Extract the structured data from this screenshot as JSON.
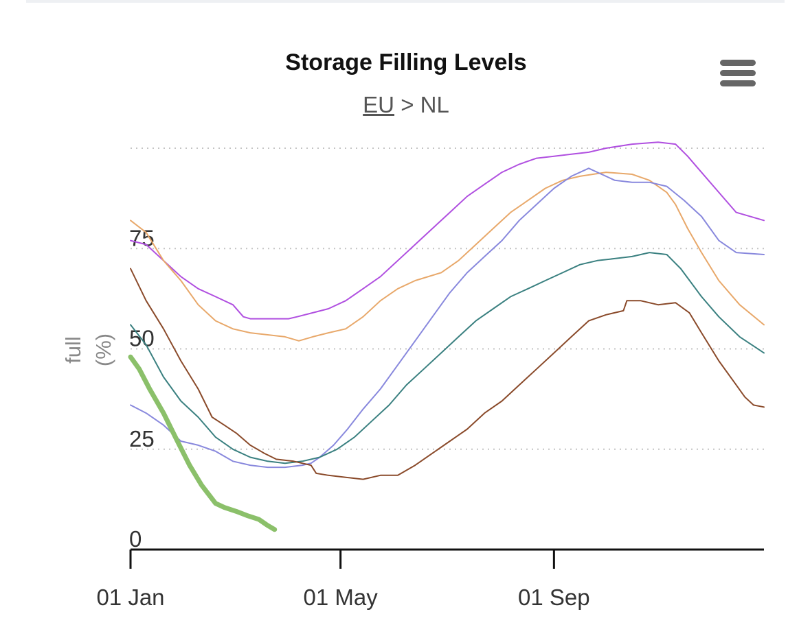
{
  "chart_data": {
    "type": "line",
    "title": "Storage Filling Levels",
    "subtitle": {
      "link": "EU",
      "separator": ">",
      "current": "NL"
    },
    "ylabel": "full (%)",
    "ylabel_lines": [
      "full",
      "(%)"
    ],
    "xlabel": "",
    "ylim": [
      0,
      100
    ],
    "y_ticks": [
      0,
      25,
      50,
      75
    ],
    "grid": true,
    "x_unit": "day_of_year",
    "xlim": [
      1,
      366
    ],
    "x_ticks": [
      {
        "day": 1,
        "label": "01 Jan"
      },
      {
        "day": 122,
        "label": "01 May"
      },
      {
        "day": 245,
        "label": "01 Sep"
      }
    ],
    "series": [
      {
        "name": "purple",
        "color": "#b04fe0",
        "width": 2,
        "points": [
          [
            1,
            77
          ],
          [
            10,
            76
          ],
          [
            20,
            72
          ],
          [
            30,
            68
          ],
          [
            40,
            65
          ],
          [
            50,
            63
          ],
          [
            60,
            61
          ],
          [
            66,
            58
          ],
          [
            70,
            57.5
          ],
          [
            80,
            57.5
          ],
          [
            92,
            57.5
          ],
          [
            97,
            58
          ],
          [
            106,
            59
          ],
          [
            115,
            60
          ],
          [
            125,
            62
          ],
          [
            135,
            65
          ],
          [
            145,
            68
          ],
          [
            155,
            72
          ],
          [
            165,
            76
          ],
          [
            175,
            80
          ],
          [
            185,
            84
          ],
          [
            195,
            88
          ],
          [
            205,
            91
          ],
          [
            215,
            94
          ],
          [
            225,
            96
          ],
          [
            235,
            97.5
          ],
          [
            245,
            98
          ],
          [
            255,
            98.5
          ],
          [
            265,
            99
          ],
          [
            275,
            100
          ],
          [
            290,
            101
          ],
          [
            305,
            101.5
          ],
          [
            315,
            101
          ],
          [
            322,
            98
          ],
          [
            328,
            95
          ],
          [
            340,
            89
          ],
          [
            350,
            84
          ],
          [
            366,
            82
          ]
        ]
      },
      {
        "name": "orange",
        "color": "#e8a86a",
        "width": 2,
        "points": [
          [
            1,
            82
          ],
          [
            10,
            79
          ],
          [
            20,
            72
          ],
          [
            30,
            67
          ],
          [
            40,
            61
          ],
          [
            50,
            57
          ],
          [
            60,
            55
          ],
          [
            70,
            54
          ],
          [
            80,
            53.5
          ],
          [
            90,
            53
          ],
          [
            98,
            52
          ],
          [
            106,
            53
          ],
          [
            115,
            54
          ],
          [
            125,
            55
          ],
          [
            135,
            58
          ],
          [
            145,
            62
          ],
          [
            155,
            65
          ],
          [
            165,
            67
          ],
          [
            180,
            69
          ],
          [
            190,
            72
          ],
          [
            200,
            76
          ],
          [
            210,
            80
          ],
          [
            220,
            84
          ],
          [
            230,
            87
          ],
          [
            240,
            90
          ],
          [
            250,
            92
          ],
          [
            260,
            93
          ],
          [
            275,
            94
          ],
          [
            290,
            93.5
          ],
          [
            300,
            92
          ],
          [
            310,
            89
          ],
          [
            315,
            86
          ],
          [
            322,
            80
          ],
          [
            330,
            74
          ],
          [
            340,
            67
          ],
          [
            352,
            61
          ],
          [
            366,
            56
          ]
        ]
      },
      {
        "name": "lavender",
        "color": "#8888dd",
        "width": 2,
        "points": [
          [
            1,
            36
          ],
          [
            10,
            34
          ],
          [
            20,
            31
          ],
          [
            30,
            27
          ],
          [
            40,
            26
          ],
          [
            50,
            24.5
          ],
          [
            60,
            22
          ],
          [
            70,
            21
          ],
          [
            80,
            20.5
          ],
          [
            90,
            20.5
          ],
          [
            100,
            21
          ],
          [
            105,
            21.5
          ],
          [
            110,
            23
          ],
          [
            118,
            26
          ],
          [
            126,
            30
          ],
          [
            135,
            35
          ],
          [
            145,
            40
          ],
          [
            155,
            46
          ],
          [
            165,
            52
          ],
          [
            175,
            58
          ],
          [
            185,
            64
          ],
          [
            195,
            69
          ],
          [
            205,
            73
          ],
          [
            215,
            77
          ],
          [
            225,
            82
          ],
          [
            235,
            86
          ],
          [
            245,
            90
          ],
          [
            255,
            93
          ],
          [
            265,
            95
          ],
          [
            270,
            94
          ],
          [
            280,
            92
          ],
          [
            290,
            91.5
          ],
          [
            300,
            91.5
          ],
          [
            310,
            90.5
          ],
          [
            320,
            87
          ],
          [
            330,
            83
          ],
          [
            340,
            77
          ],
          [
            350,
            74
          ],
          [
            366,
            73.5
          ]
        ]
      },
      {
        "name": "teal",
        "color": "#3a8080",
        "width": 2,
        "points": [
          [
            1,
            56
          ],
          [
            10,
            51
          ],
          [
            20,
            43
          ],
          [
            30,
            37
          ],
          [
            40,
            33
          ],
          [
            50,
            28
          ],
          [
            60,
            25
          ],
          [
            70,
            23
          ],
          [
            80,
            22
          ],
          [
            90,
            21.5
          ],
          [
            100,
            22
          ],
          [
            110,
            23
          ],
          [
            120,
            25
          ],
          [
            130,
            28
          ],
          [
            140,
            32
          ],
          [
            150,
            36
          ],
          [
            160,
            41
          ],
          [
            170,
            45
          ],
          [
            180,
            49
          ],
          [
            190,
            53
          ],
          [
            200,
            57
          ],
          [
            210,
            60
          ],
          [
            220,
            63
          ],
          [
            230,
            65
          ],
          [
            240,
            67
          ],
          [
            250,
            69
          ],
          [
            260,
            71
          ],
          [
            270,
            72
          ],
          [
            280,
            72.5
          ],
          [
            290,
            73
          ],
          [
            300,
            74
          ],
          [
            310,
            73.5
          ],
          [
            318,
            70
          ],
          [
            330,
            63
          ],
          [
            340,
            58
          ],
          [
            352,
            53
          ],
          [
            366,
            49
          ]
        ]
      },
      {
        "name": "brown",
        "color": "#8a4a2a",
        "width": 2,
        "points": [
          [
            1,
            70
          ],
          [
            10,
            62
          ],
          [
            20,
            55
          ],
          [
            30,
            47
          ],
          [
            40,
            40
          ],
          [
            48,
            33
          ],
          [
            55,
            31
          ],
          [
            62,
            29
          ],
          [
            70,
            26
          ],
          [
            78,
            24
          ],
          [
            85,
            22.5
          ],
          [
            95,
            22
          ],
          [
            105,
            21
          ],
          [
            108,
            19
          ],
          [
            115,
            18.5
          ],
          [
            125,
            18
          ],
          [
            135,
            17.5
          ],
          [
            145,
            18.5
          ],
          [
            155,
            18.5
          ],
          [
            165,
            21
          ],
          [
            175,
            24
          ],
          [
            185,
            27
          ],
          [
            195,
            30
          ],
          [
            205,
            34
          ],
          [
            215,
            37
          ],
          [
            225,
            41
          ],
          [
            235,
            45
          ],
          [
            245,
            49
          ],
          [
            255,
            53
          ],
          [
            265,
            57
          ],
          [
            275,
            58.5
          ],
          [
            285,
            59.5
          ],
          [
            287,
            62
          ],
          [
            295,
            62
          ],
          [
            305,
            61
          ],
          [
            315,
            61.5
          ],
          [
            323,
            59
          ],
          [
            330,
            54
          ],
          [
            340,
            47
          ],
          [
            350,
            41
          ],
          [
            355,
            38
          ],
          [
            360,
            36
          ],
          [
            366,
            35.5
          ]
        ]
      },
      {
        "name": "current",
        "color": "#8bc06a",
        "width": 7,
        "points": [
          [
            1,
            48
          ],
          [
            6,
            45
          ],
          [
            12,
            40
          ],
          [
            20,
            34
          ],
          [
            28,
            27
          ],
          [
            35,
            21
          ],
          [
            42,
            16
          ],
          [
            50,
            11.5
          ],
          [
            55,
            10.5
          ],
          [
            62,
            9.5
          ],
          [
            68,
            8.5
          ],
          [
            75,
            7.5
          ],
          [
            80,
            6
          ],
          [
            84,
            5
          ]
        ]
      }
    ]
  }
}
